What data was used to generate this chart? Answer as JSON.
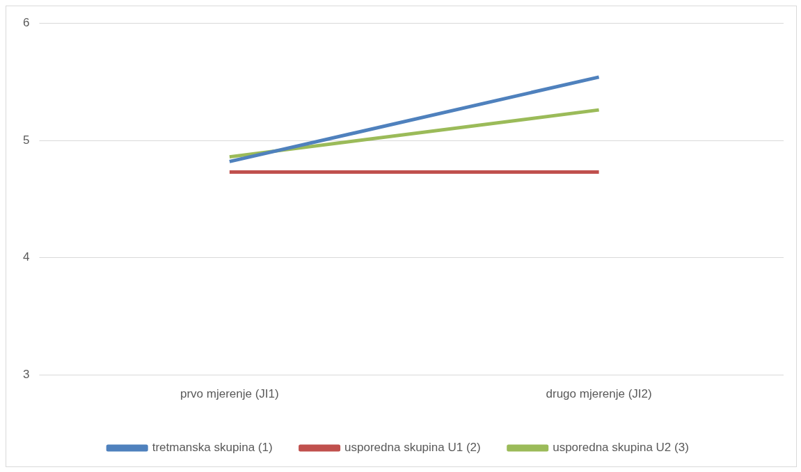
{
  "chart_data": {
    "type": "line",
    "categories": [
      "prvo mjerenje (JI1)",
      "drugo mjerenje (JI2)"
    ],
    "series": [
      {
        "name": "tretmanska skupina (1)",
        "color": "#4f81bd",
        "values": [
          4.82,
          5.54
        ]
      },
      {
        "name": "usporedna skupina U1 (2)",
        "color": "#c0504d",
        "values": [
          4.73,
          4.73
        ]
      },
      {
        "name": "usporedna skupina U2 (3)",
        "color": "#9bbb59",
        "values": [
          4.86,
          5.26
        ]
      }
    ],
    "ylim": [
      3,
      6
    ],
    "yticks": [
      3,
      4,
      5,
      6
    ],
    "grid": "y",
    "legend": "bottom",
    "marker": "none",
    "line_style": "solid"
  }
}
